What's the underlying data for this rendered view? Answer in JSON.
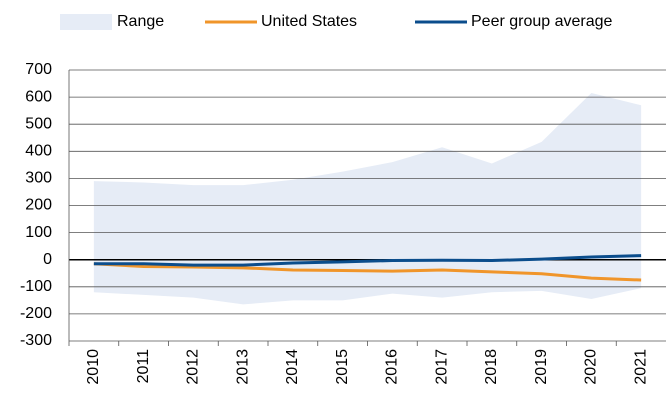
{
  "chart_data": {
    "type": "line",
    "categories": [
      "2010",
      "2011",
      "2012",
      "2013",
      "2014",
      "2015",
      "2016",
      "2017",
      "2018",
      "2019",
      "2020",
      "2021"
    ],
    "range": {
      "name": "Range",
      "color": "#e6ecf6",
      "upper": [
        290,
        285,
        275,
        275,
        295,
        325,
        360,
        415,
        355,
        435,
        615,
        570
      ],
      "lower": [
        -120,
        -130,
        -140,
        -165,
        -150,
        -150,
        -125,
        -140,
        -120,
        -115,
        -145,
        -105
      ]
    },
    "series": [
      {
        "name": "United States",
        "color": "#f0952a",
        "values": [
          -15,
          -25,
          -27,
          -30,
          -38,
          -40,
          -42,
          -38,
          -45,
          -52,
          -68,
          -75
        ]
      },
      {
        "name": "Peer group average",
        "color": "#0b4d8c",
        "values": [
          -15,
          -15,
          -20,
          -20,
          -12,
          -8,
          -3,
          -2,
          -3,
          2,
          10,
          15
        ]
      }
    ],
    "ylim": [
      -300,
      700
    ],
    "yticks": [
      -300,
      -200,
      -100,
      0,
      100,
      200,
      300,
      400,
      500,
      600,
      700
    ],
    "grid": true
  }
}
